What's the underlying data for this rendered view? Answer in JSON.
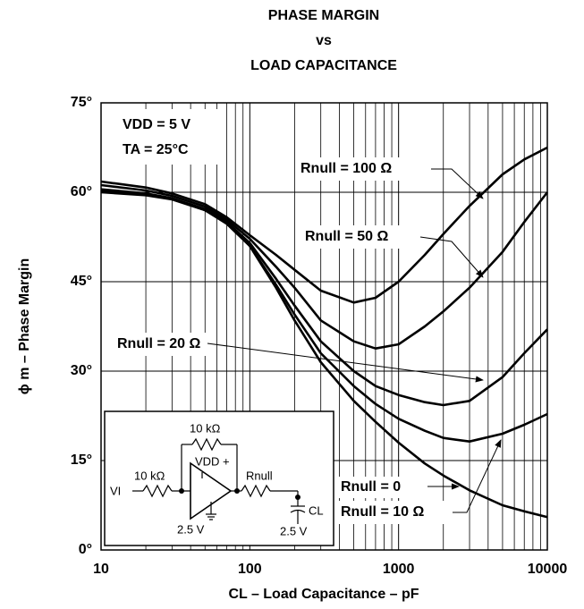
{
  "chart_data": {
    "type": "line",
    "title": [
      "PHASE MARGIN",
      "vs",
      "LOAD CAPACITANCE"
    ],
    "xlabel": "CL – Load Capacitance – pF",
    "ylabel": "ϕ m – Phase Margin",
    "xscale": "log",
    "grid": true,
    "xlim": [
      10,
      10000
    ],
    "ylim": [
      0,
      75
    ],
    "xticks": [
      10,
      100,
      1000,
      10000
    ],
    "yticks": [
      {
        "value": 0,
        "label": "0°"
      },
      {
        "value": 15,
        "label": "15°"
      },
      {
        "value": 30,
        "label": "30°"
      },
      {
        "value": 45,
        "label": "45°"
      },
      {
        "value": 60,
        "label": "60°"
      },
      {
        "value": 75,
        "label": "75°"
      }
    ],
    "annotations": [
      "VDD = 5 V",
      "TA = 25°C"
    ],
    "x": [
      10,
      20,
      30,
      50,
      70,
      100,
      150,
      200,
      300,
      500,
      700,
      1000,
      1500,
      2000,
      3000,
      5000,
      7000,
      10000
    ],
    "series": [
      {
        "name": "Rnull = 100 Ω",
        "color": "#000000",
        "values": [
          61.8,
          60.8,
          59.8,
          58,
          55.8,
          52.8,
          49.5,
          47,
          43.5,
          41.5,
          42.3,
          45,
          49.5,
          53,
          57.7,
          63,
          65.5,
          67.5
        ]
      },
      {
        "name": "Rnull = 50 Ω",
        "color": "#000000",
        "values": [
          61.2,
          60.3,
          59.4,
          57.6,
          55.4,
          52.2,
          47.5,
          44,
          38.5,
          35,
          33.8,
          34.5,
          37.5,
          40,
          44,
          50,
          55,
          60
        ]
      },
      {
        "name": "Rnull = 20 Ω",
        "color": "#000000",
        "values": [
          60.5,
          59.8,
          59,
          57.2,
          55,
          51.5,
          45.5,
          41,
          35,
          30,
          27.5,
          26,
          24.8,
          24.3,
          25,
          29,
          33,
          37
        ]
      },
      {
        "name": "Rnull = 10 Ω",
        "color": "#000000",
        "values": [
          60.2,
          59.6,
          58.9,
          57,
          54.8,
          51,
          44.5,
          39.5,
          33,
          27.5,
          24.5,
          22,
          20,
          18.8,
          18.2,
          19.5,
          21,
          22.8
        ]
      },
      {
        "name": "Rnull = 0",
        "color": "#000000",
        "values": [
          60,
          59.5,
          58.8,
          57,
          54.7,
          51,
          44,
          38.5,
          31.5,
          25,
          21.5,
          18,
          14.5,
          12.5,
          10,
          7.5,
          6.5,
          5.5
        ]
      }
    ],
    "inset": {
      "labels": [
        "10 kΩ",
        "VDD +",
        "10 kΩ",
        "Rnull",
        "VI",
        "CL",
        "2.5 V",
        "2.5 V"
      ]
    }
  }
}
